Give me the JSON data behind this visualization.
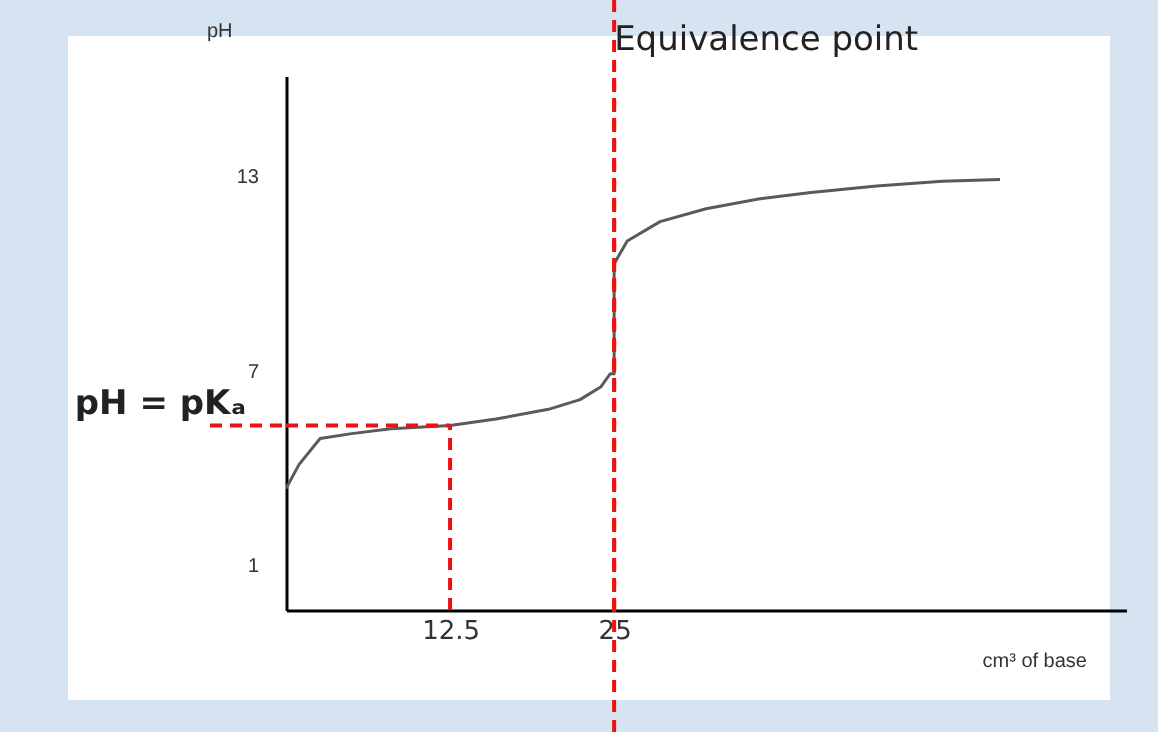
{
  "chart_data": {
    "type": "line",
    "xlabel": "cm³ of base",
    "ylabel": "pH",
    "x": [
      0,
      1,
      2.6,
      5,
      8,
      12.5,
      16,
      20,
      22.4,
      24,
      24.7,
      25,
      25,
      26,
      28.5,
      32,
      36,
      40,
      45,
      50,
      54.4
    ],
    "series": [
      {
        "color": "#5a5a5a",
        "values": [
          3.35,
          4.1,
          4.9,
          5.05,
          5.2,
          5.3,
          5.5,
          5.8,
          6.1,
          6.5,
          6.9,
          6.9,
          10.3,
          11.0,
          11.6,
          12.0,
          12.3,
          12.5,
          12.7,
          12.85,
          12.9
        ]
      }
    ],
    "xlim": [
      0,
      64
    ],
    "xticks": [
      {
        "value": 12.5,
        "label": "12.5"
      },
      25
    ],
    "ylim": [
      -0.4,
      16.1
    ],
    "yticks": [
      1,
      7,
      13
    ],
    "grid": false,
    "ref_lines": [
      {
        "axis": "x",
        "value": 25,
        "label": "Equivalence point",
        "color": "#ee1111",
        "line_style": "dashed"
      },
      {
        "axis": "x",
        "value": 12.5,
        "color": "#ee1111",
        "line_style": "dashed"
      },
      {
        "axis": "y",
        "value": 5.3,
        "label": "pH = pKₐ",
        "color": "#ee1111",
        "line_style": "dashed"
      }
    ]
  }
}
